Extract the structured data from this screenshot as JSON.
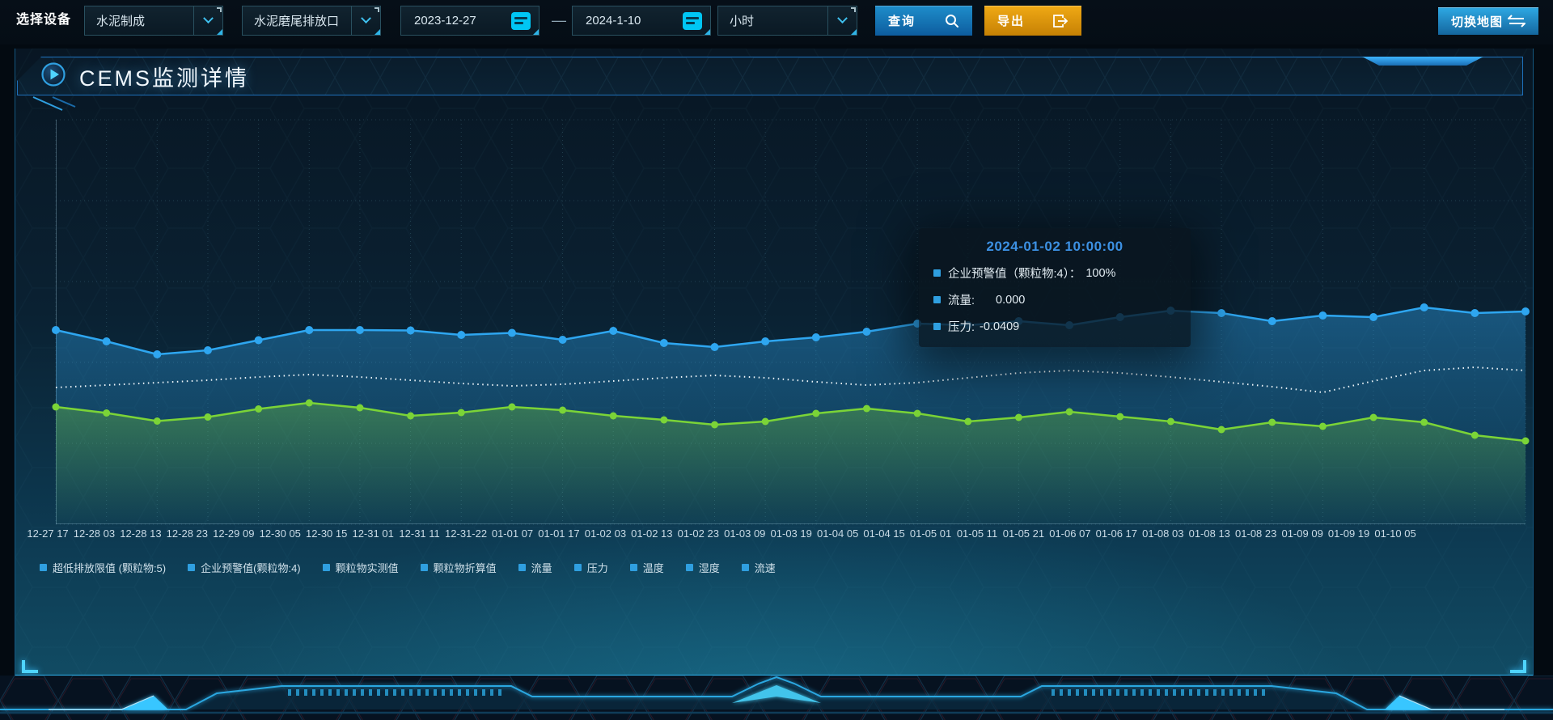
{
  "toolbar": {
    "device_label": "选择设备",
    "dropdown_process": "水泥制成",
    "dropdown_outlet": "水泥磨尾排放口",
    "date_start": "2023-12-27",
    "date_separator": "—",
    "date_end": "2024-1-10",
    "dropdown_interval": "小时",
    "query_label": "查询",
    "export_label": "导出",
    "switch_map_label": "切换地图"
  },
  "panel": {
    "title": "CEMS监测详情"
  },
  "tooltip": {
    "title": "2024-01-02 10:00:00",
    "rows": [
      {
        "label": "企业预警值（颗粒物:4）：",
        "value": "100%"
      },
      {
        "label": "流量:",
        "value": "0.000"
      },
      {
        "label": "压力:",
        "value": "-0.0409"
      }
    ]
  },
  "legend": [
    "超低排放限值 (颗粒物:5)",
    "企业预警值(颗粒物:4)",
    "颗粒物实测值",
    "颗粒物折算值",
    "流量",
    "压力",
    "温度",
    "湿度",
    "流速"
  ],
  "colors": {
    "accent_blue": "#2f9fe0",
    "accent_cyan": "#00c6f4",
    "accent_orange": "#eda411",
    "tooltip_title": "#3c90e2",
    "series_blue": "#2ea6f0",
    "series_dotted": "#edf5f9",
    "series_green": "#7bd437"
  },
  "chart_data": {
    "type": "line",
    "title": "",
    "xlabel": "",
    "ylabel": "",
    "ylim": [
      0,
      100
    ],
    "grid": true,
    "y_axis_labels": false,
    "legend_position": "bottom",
    "x": [
      "12-27 17",
      "12-28 03",
      "12-28 13",
      "12-28 23",
      "12-29 09",
      "12-30 05",
      "12-30 15",
      "12-31 01",
      "12-31 11",
      "12-31-22",
      "01-01 07",
      "01-01 17",
      "01-02 03",
      "01-02 13",
      "01-02 23",
      "01-03 09",
      "01-03 19",
      "01-04 05",
      "01-04 15",
      "01-05 01",
      "01-05 11",
      "01-05 21",
      "01-06 07",
      "01-06 17",
      "01-08 03",
      "01-08 13",
      "01-08 23",
      "01-09 09",
      "01-09 19",
      "01-10 05"
    ],
    "series": [
      {
        "name": "颗粒物实测值",
        "color": "#2ea6f0",
        "style": "solid",
        "markers": true,
        "area": true,
        "values": [
          48,
          45.2,
          42,
          43,
          45.5,
          48,
          48,
          47.9,
          46.8,
          47.3,
          45.6,
          47.8,
          44.8,
          43.8,
          45.2,
          46.2,
          47.6,
          49.6,
          49.2,
          50.2,
          49.2,
          51.2,
          52.8,
          52.2,
          50.2,
          51.6,
          51.2,
          53.6,
          52.2,
          52.6
        ]
      },
      {
        "name": "企业预警值(颗粒物:4)",
        "color": "#edf5f9",
        "style": "dotted",
        "markers": false,
        "area": false,
        "values": [
          33.8,
          34.4,
          35,
          35.6,
          36.4,
          37,
          36.4,
          35.6,
          34.8,
          34.2,
          34.6,
          35.4,
          36.2,
          36.8,
          36.2,
          35.2,
          34.4,
          35,
          36.2,
          37.4,
          38,
          37.4,
          36.4,
          35.2,
          34,
          32.6,
          35.4,
          38,
          38.8,
          38
        ]
      },
      {
        "name": "颗粒物折算值",
        "color": "#7bd437",
        "style": "solid",
        "markers": true,
        "area": true,
        "values": [
          29,
          27.5,
          25.5,
          26.5,
          28.5,
          30,
          28.8,
          26.8,
          27.6,
          29,
          28.2,
          26.8,
          25.8,
          24.6,
          25.4,
          27.4,
          28.6,
          27.4,
          25.4,
          26.4,
          27.8,
          26.6,
          25.4,
          23.4,
          25.2,
          24.2,
          26.4,
          25.2,
          22,
          20.6
        ]
      }
    ]
  }
}
